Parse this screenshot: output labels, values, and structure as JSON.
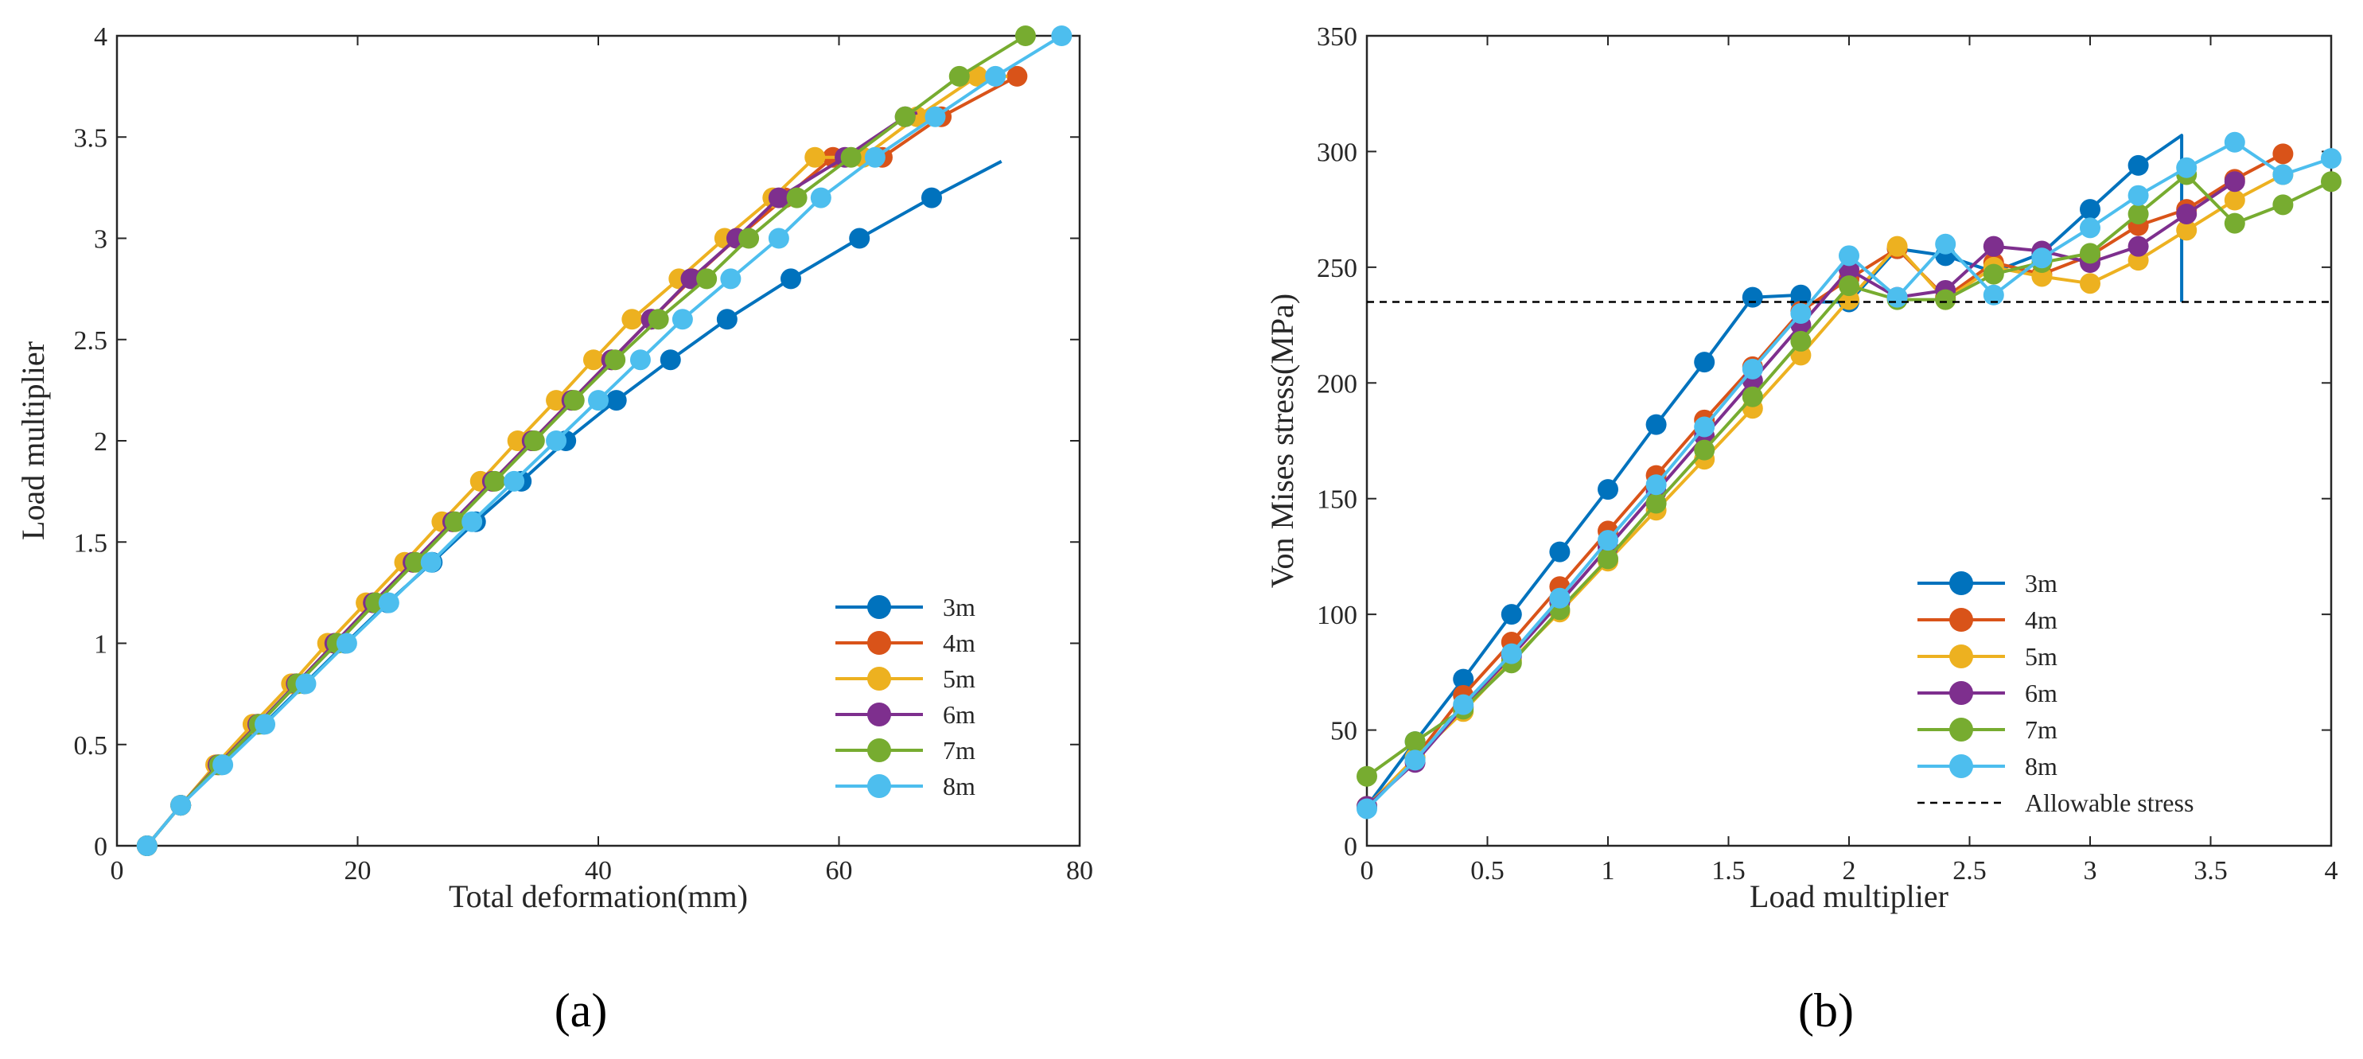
{
  "colors": {
    "3m": "#0072BD",
    "4m": "#D95319",
    "5m": "#EDB120",
    "6m": "#7E2F8E",
    "7m": "#77AC30",
    "8m": "#4DBEEE",
    "allowable": "#000000"
  },
  "panels": [
    {
      "label": "(a)"
    },
    {
      "label": "(b)"
    }
  ],
  "chart_data": [
    {
      "type": "line",
      "title": "",
      "xlabel": "Total deformation(mm)",
      "ylabel": "Load multiplier",
      "xlim": [
        0,
        80
      ],
      "ylim": [
        0,
        4
      ],
      "xticks": [
        "0",
        "20",
        "40",
        "60",
        "80"
      ],
      "yticks": [
        "0",
        "0.5",
        "1",
        "1.5",
        "2",
        "2.5",
        "3",
        "3.5",
        "4"
      ],
      "legend_position": "bottom-right",
      "series": [
        {
          "name": "3m",
          "color_key": "3m",
          "x": [
            2.5,
            5.3,
            8.7,
            12.2,
            15.6,
            19.0,
            22.5,
            26.2,
            29.8,
            33.6,
            37.3,
            41.5,
            46.0,
            50.7,
            56.0,
            61.7,
            67.7,
            73.5
          ],
          "y": [
            0,
            0.2,
            0.4,
            0.6,
            0.8,
            1.0,
            1.2,
            1.4,
            1.6,
            1.8,
            2.0,
            2.2,
            2.4,
            2.6,
            2.8,
            3.0,
            3.2,
            3.38
          ],
          "markers": 17
        },
        {
          "name": "4m",
          "color_key": "4m",
          "x": [
            2.5,
            5.3,
            8.4,
            11.7,
            14.9,
            18.1,
            21.3,
            24.6,
            27.9,
            31.2,
            34.5,
            37.8,
            41.1,
            44.4,
            47.8,
            51.5,
            55.5,
            59.5,
            63.6,
            68.5,
            74.8
          ],
          "y": [
            0,
            0.2,
            0.4,
            0.6,
            0.8,
            1.0,
            1.2,
            1.4,
            1.6,
            1.8,
            2.0,
            2.2,
            2.4,
            2.6,
            2.8,
            3.0,
            3.2,
            3.4,
            3.4,
            3.6,
            3.8
          ],
          "markers": 21
        },
        {
          "name": "5m",
          "color_key": "5m",
          "x": [
            2.5,
            5.3,
            8.2,
            11.3,
            14.5,
            17.5,
            20.7,
            23.9,
            27.0,
            30.2,
            33.3,
            36.5,
            39.6,
            42.8,
            46.7,
            50.5,
            54.5,
            58.0,
            62.0,
            66.5,
            71.5,
            74.0
          ],
          "y": [
            0,
            0.2,
            0.4,
            0.6,
            0.8,
            1.0,
            1.2,
            1.4,
            1.6,
            1.8,
            2.0,
            2.2,
            2.4,
            2.6,
            2.8,
            3.0,
            3.2,
            3.4,
            3.4,
            3.6,
            3.8,
            3.8
          ],
          "markers": 21
        },
        {
          "name": "6m",
          "color_key": "6m",
          "x": [
            2.5,
            5.3,
            8.4,
            11.7,
            14.9,
            18.1,
            21.3,
            24.6,
            27.9,
            31.2,
            34.5,
            37.8,
            41.1,
            44.4,
            47.7,
            51.5,
            55.0,
            60.5,
            65.5,
            66.5
          ],
          "y": [
            0,
            0.2,
            0.4,
            0.6,
            0.8,
            1.0,
            1.2,
            1.4,
            1.6,
            1.8,
            2.0,
            2.2,
            2.4,
            2.6,
            2.8,
            3.0,
            3.2,
            3.4,
            3.6,
            3.62
          ],
          "markers": 19
        },
        {
          "name": "7m",
          "color_key": "7m",
          "x": [
            2.5,
            5.3,
            8.5,
            11.8,
            15.0,
            18.3,
            21.5,
            24.8,
            28.1,
            31.4,
            34.7,
            38.0,
            41.4,
            45.0,
            49.0,
            52.5,
            56.5,
            61.0,
            65.5,
            70.0,
            75.5
          ],
          "y": [
            0,
            0.2,
            0.4,
            0.6,
            0.8,
            1.0,
            1.2,
            1.4,
            1.6,
            1.8,
            2.0,
            2.2,
            2.4,
            2.6,
            2.8,
            3.0,
            3.2,
            3.4,
            3.6,
            3.8,
            4.0
          ],
          "markers": 21
        },
        {
          "name": "8m",
          "color_key": "8m",
          "x": [
            2.5,
            5.3,
            8.8,
            12.3,
            15.7,
            19.1,
            22.6,
            26.1,
            29.5,
            33.0,
            36.5,
            40.0,
            43.5,
            47.0,
            51.0,
            55.0,
            58.5,
            63.0,
            68.0,
            73.0,
            78.5
          ],
          "y": [
            0,
            0.2,
            0.4,
            0.6,
            0.8,
            1.0,
            1.2,
            1.4,
            1.6,
            1.8,
            2.0,
            2.2,
            2.4,
            2.6,
            2.8,
            3.0,
            3.2,
            3.4,
            3.6,
            3.8,
            4.0
          ],
          "markers": 21
        }
      ]
    },
    {
      "type": "line",
      "title": "",
      "xlabel": "Load multiplier",
      "ylabel": "Von Mises stress(MPa)",
      "xlim": [
        0,
        4
      ],
      "ylim": [
        0,
        350
      ],
      "xticks": [
        "0",
        "0.5",
        "1",
        "1.5",
        "2",
        "2.5",
        "3",
        "3.5",
        "4"
      ],
      "yticks": [
        "0",
        "50",
        "100",
        "150",
        "200",
        "250",
        "300",
        "350"
      ],
      "legend_position": "middle-right",
      "allowable_stress": 235,
      "series": [
        {
          "name": "3m",
          "color_key": "3m",
          "x": [
            0,
            0.2,
            0.4,
            0.6,
            0.8,
            1.0,
            1.2,
            1.4,
            1.6,
            1.8,
            1.8,
            2.0,
            2.2,
            2.4,
            2.6,
            2.8,
            3.0,
            3.2,
            3.38,
            3.38
          ],
          "y": [
            17,
            45,
            72,
            100,
            127,
            154,
            182,
            209,
            237,
            238,
            235,
            235,
            258,
            255,
            248,
            256,
            275,
            294,
            307,
            235
          ],
          "markers": 18
        },
        {
          "name": "4m",
          "color_key": "4m",
          "x": [
            0,
            0.2,
            0.4,
            0.6,
            0.8,
            1.0,
            1.2,
            1.4,
            1.6,
            1.8,
            2.0,
            2.2,
            2.4,
            2.6,
            2.8,
            3.0,
            3.2,
            3.4,
            3.6,
            3.8
          ],
          "y": [
            17,
            38,
            65,
            88,
            112,
            136,
            160,
            184,
            207,
            231,
            245,
            258,
            237,
            252,
            247,
            255,
            268,
            275,
            288,
            299
          ],
          "markers": 20
        },
        {
          "name": "5m",
          "color_key": "5m",
          "x": [
            0,
            0.2,
            0.4,
            0.6,
            0.8,
            1.0,
            1.2,
            1.4,
            1.6,
            1.8,
            2.0,
            2.2,
            2.4,
            2.6,
            2.8,
            3.0,
            3.2,
            3.4,
            3.6,
            3.8
          ],
          "y": [
            17,
            38,
            58,
            80,
            101,
            123,
            145,
            167,
            189,
            212,
            236,
            259,
            236,
            250,
            246,
            243,
            253,
            266,
            279,
            290
          ],
          "markers": 20
        },
        {
          "name": "6m",
          "color_key": "6m",
          "x": [
            0,
            0.2,
            0.4,
            0.6,
            0.8,
            1.0,
            1.2,
            1.4,
            1.6,
            1.8,
            2.0,
            2.2,
            2.4,
            2.6,
            2.8,
            3.0,
            3.2,
            3.4,
            3.6
          ],
          "y": [
            17,
            36,
            60,
            82,
            105,
            129,
            153,
            177,
            201,
            225,
            249,
            237,
            240,
            259,
            257,
            252,
            259,
            273,
            287
          ],
          "markers": 19
        },
        {
          "name": "7m",
          "color_key": "7m",
          "x": [
            0,
            0.2,
            0.4,
            0.6,
            0.8,
            1.0,
            1.2,
            1.4,
            1.6,
            1.8,
            2.0,
            2.2,
            2.4,
            2.6,
            2.8,
            3.0,
            3.2,
            3.4,
            3.6,
            3.8,
            4.0
          ],
          "y": [
            30,
            45,
            59,
            79,
            102,
            124,
            148,
            171,
            194,
            218,
            242,
            236,
            236,
            247,
            252,
            256,
            273,
            290,
            269,
            277,
            287
          ],
          "markers": 21
        },
        {
          "name": "8m",
          "color_key": "8m",
          "x": [
            0,
            0.2,
            0.4,
            0.6,
            0.8,
            1.0,
            1.2,
            1.4,
            1.6,
            1.8,
            2.0,
            2.2,
            2.4,
            2.6,
            2.8,
            3.0,
            3.2,
            3.4,
            3.6,
            3.8,
            4.0
          ],
          "y": [
            16,
            37,
            61,
            83,
            107,
            132,
            156,
            181,
            206,
            230,
            255,
            237,
            260,
            238,
            254,
            267,
            281,
            293,
            304,
            290,
            297
          ],
          "markers": 21
        },
        {
          "name": "Allowable stress",
          "color_key": "allowable",
          "style": "dashed",
          "x": [
            0,
            4
          ],
          "y": [
            235,
            235
          ],
          "markers": 0
        }
      ]
    }
  ]
}
